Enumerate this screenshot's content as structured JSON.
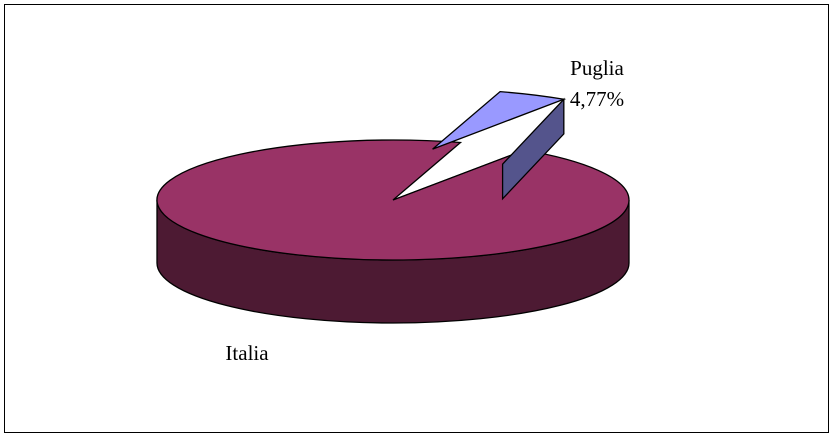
{
  "chart_data": {
    "type": "pie",
    "style": "3d-exploded",
    "categories": [
      "Italia",
      "Puglia"
    ],
    "values": [
      95.23,
      4.77
    ],
    "data_labels": [
      "",
      "4,77%"
    ],
    "colors": {
      "Italia": "#993366",
      "Puglia": "#9999ff"
    },
    "legend": "none"
  }
}
